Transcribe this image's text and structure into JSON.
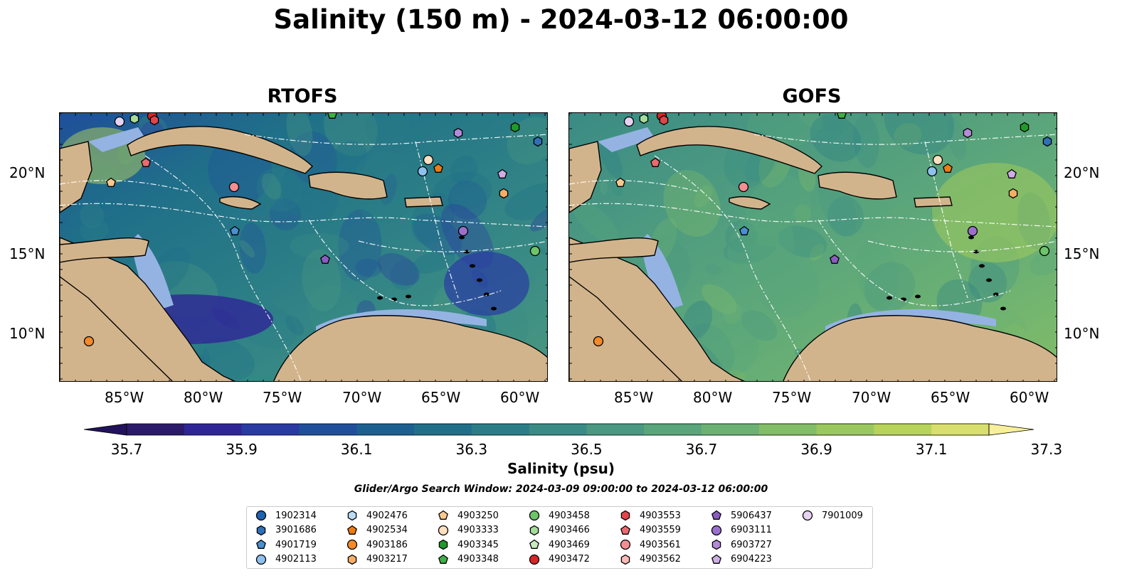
{
  "title": "Salinity (150 m) - 2024-03-12 06:00:00",
  "panels": [
    {
      "title": "RTOFS",
      "palette": "rtofs"
    },
    {
      "title": "GOFS",
      "palette": "gofs"
    }
  ],
  "longitude_ticks": [
    "85°W",
    "80°W",
    "75°W",
    "70°W",
    "65°W",
    "60°W"
  ],
  "latitude_ticks": [
    "20°N",
    "15°N",
    "10°N"
  ],
  "colorbar": {
    "label": "Salinity (psu)",
    "ticks": [
      "35.7",
      "35.9",
      "36.1",
      "36.3",
      "36.5",
      "36.7",
      "36.9",
      "37.1",
      "37.3"
    ],
    "colors": [
      "#2b1a6a",
      "#2f2596",
      "#2a3aa3",
      "#1f4f9a",
      "#1c6090",
      "#206f89",
      "#2a7d86",
      "#3a8b85",
      "#4a9881",
      "#5aa57b",
      "#6cb173",
      "#82bd68",
      "#9bc85e",
      "#b8d35a",
      "#d8df6e"
    ],
    "extend_low": "#22125c",
    "extend_high": "#f8ef9a"
  },
  "search_window": "Glider/Argo Search Window: 2024-03-09 09:00:00 to 2024-03-12 06:00:00",
  "legend": [
    {
      "id": "1902314",
      "color": "#1f62b0",
      "shape": "circle"
    },
    {
      "id": "3901686",
      "color": "#2f6fb8",
      "shape": "hexagon"
    },
    {
      "id": "4901719",
      "color": "#4a8fd0",
      "shape": "pentagon"
    },
    {
      "id": "4902113",
      "color": "#8fc1ee",
      "shape": "circle"
    },
    {
      "id": "4902476",
      "color": "#b9dcf4",
      "shape": "hexagon"
    },
    {
      "id": "4902534",
      "color": "#f07b12",
      "shape": "pentagon"
    },
    {
      "id": "4903186",
      "color": "#f58a26",
      "shape": "circle"
    },
    {
      "id": "4903217",
      "color": "#f8ad66",
      "shape": "hexagon"
    },
    {
      "id": "4903250",
      "color": "#fbc98f",
      "shape": "pentagon"
    },
    {
      "id": "4903333",
      "color": "#fde0c0",
      "shape": "circle"
    },
    {
      "id": "4903345",
      "color": "#1f9a2a",
      "shape": "hexagon"
    },
    {
      "id": "4903348",
      "color": "#3fb045",
      "shape": "pentagon"
    },
    {
      "id": "4903458",
      "color": "#6fc46a",
      "shape": "circle"
    },
    {
      "id": "4903466",
      "color": "#a6dc9a",
      "shape": "hexagon"
    },
    {
      "id": "4903469",
      "color": "#c9ecc0",
      "shape": "pentagon"
    },
    {
      "id": "4903472",
      "color": "#d62728",
      "shape": "circle"
    },
    {
      "id": "4903553",
      "color": "#e0454a",
      "shape": "hexagon"
    },
    {
      "id": "4903559",
      "color": "#ea6a6e",
      "shape": "pentagon"
    },
    {
      "id": "4903561",
      "color": "#f38e92",
      "shape": "circle"
    },
    {
      "id": "4903562",
      "color": "#f8b9b9",
      "shape": "hexagon"
    },
    {
      "id": "5906437",
      "color": "#8a5cc0",
      "shape": "pentagon"
    },
    {
      "id": "6903111",
      "color": "#9b70cc",
      "shape": "circle"
    },
    {
      "id": "6903727",
      "color": "#b58ad8",
      "shape": "hexagon"
    },
    {
      "id": "6904223",
      "color": "#cfaee6",
      "shape": "pentagon"
    },
    {
      "id": "7901009",
      "color": "#e6d3f2",
      "shape": "circle"
    }
  ]
}
